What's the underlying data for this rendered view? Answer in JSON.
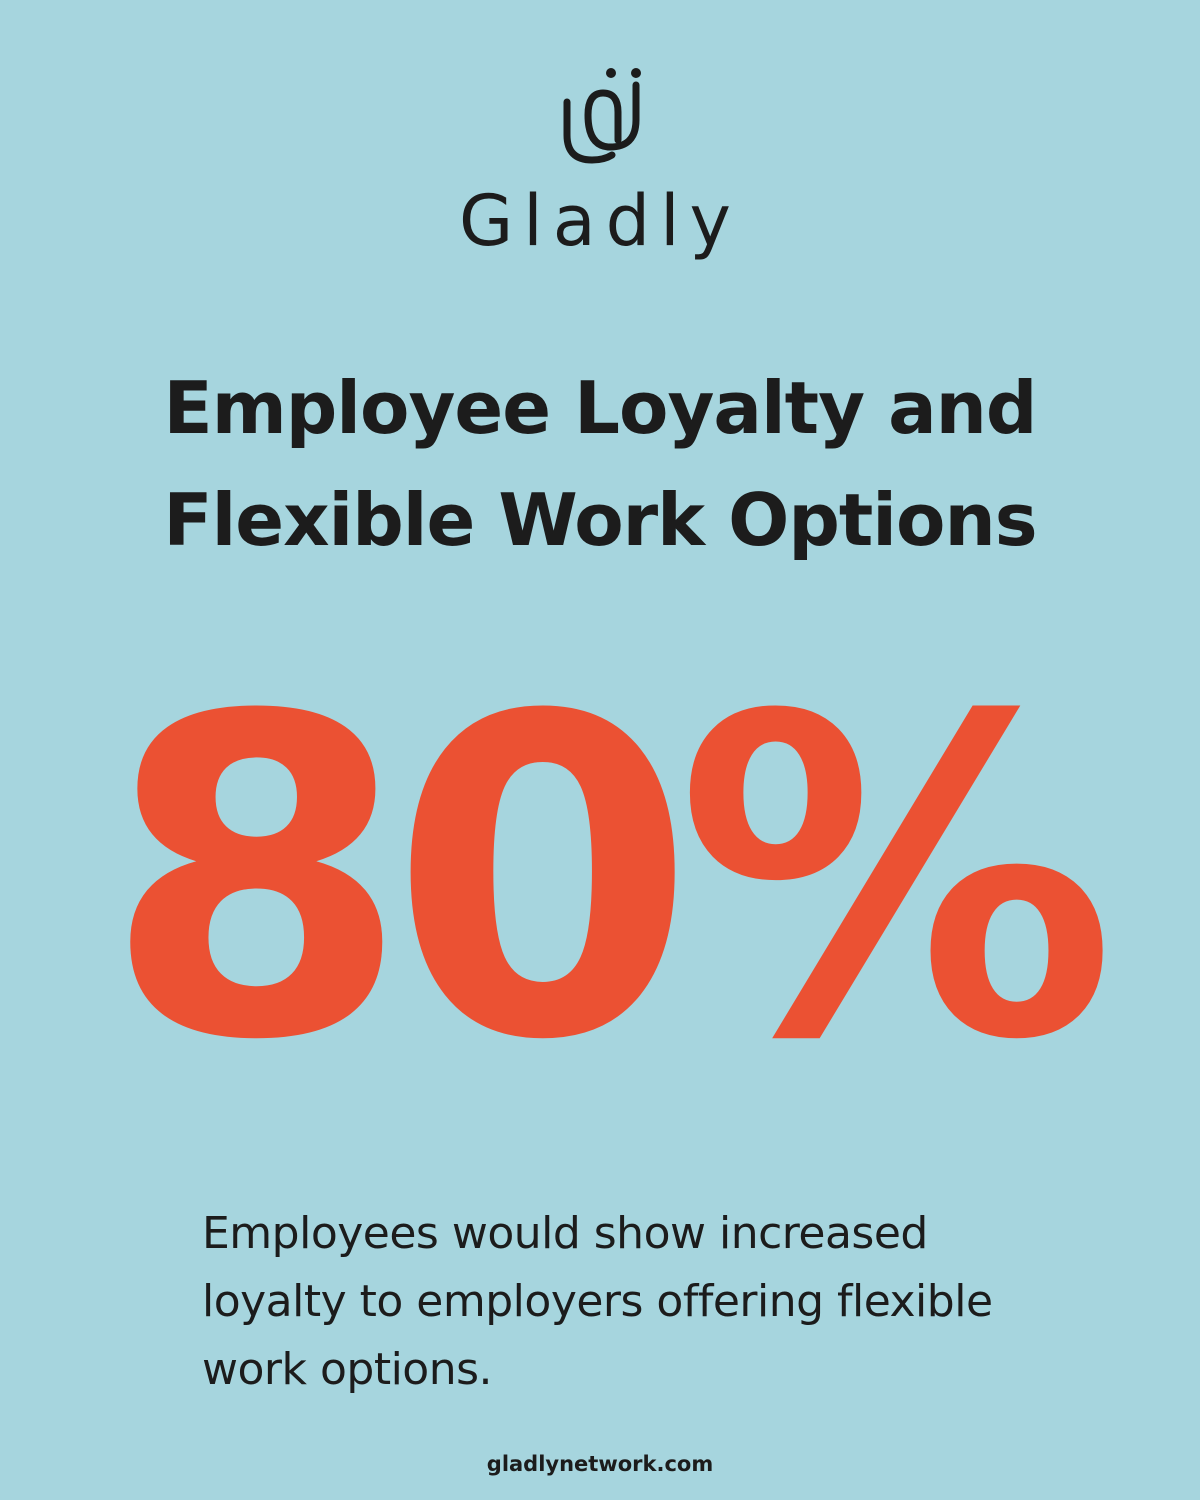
{
  "brand": {
    "name": "Gladly",
    "logo_icon": "gladly-smile-icon"
  },
  "title_lines": [
    "Employee Loyalty and",
    "Flexible Work Options"
  ],
  "statistic": "80%",
  "description": "Employees would show increased loyalty to employers offering flexible work options.",
  "footer": "gladlynetwork.com",
  "colors": {
    "background": "#a6d5de",
    "accent": "#eb5133",
    "text": "#1c1c1c"
  }
}
